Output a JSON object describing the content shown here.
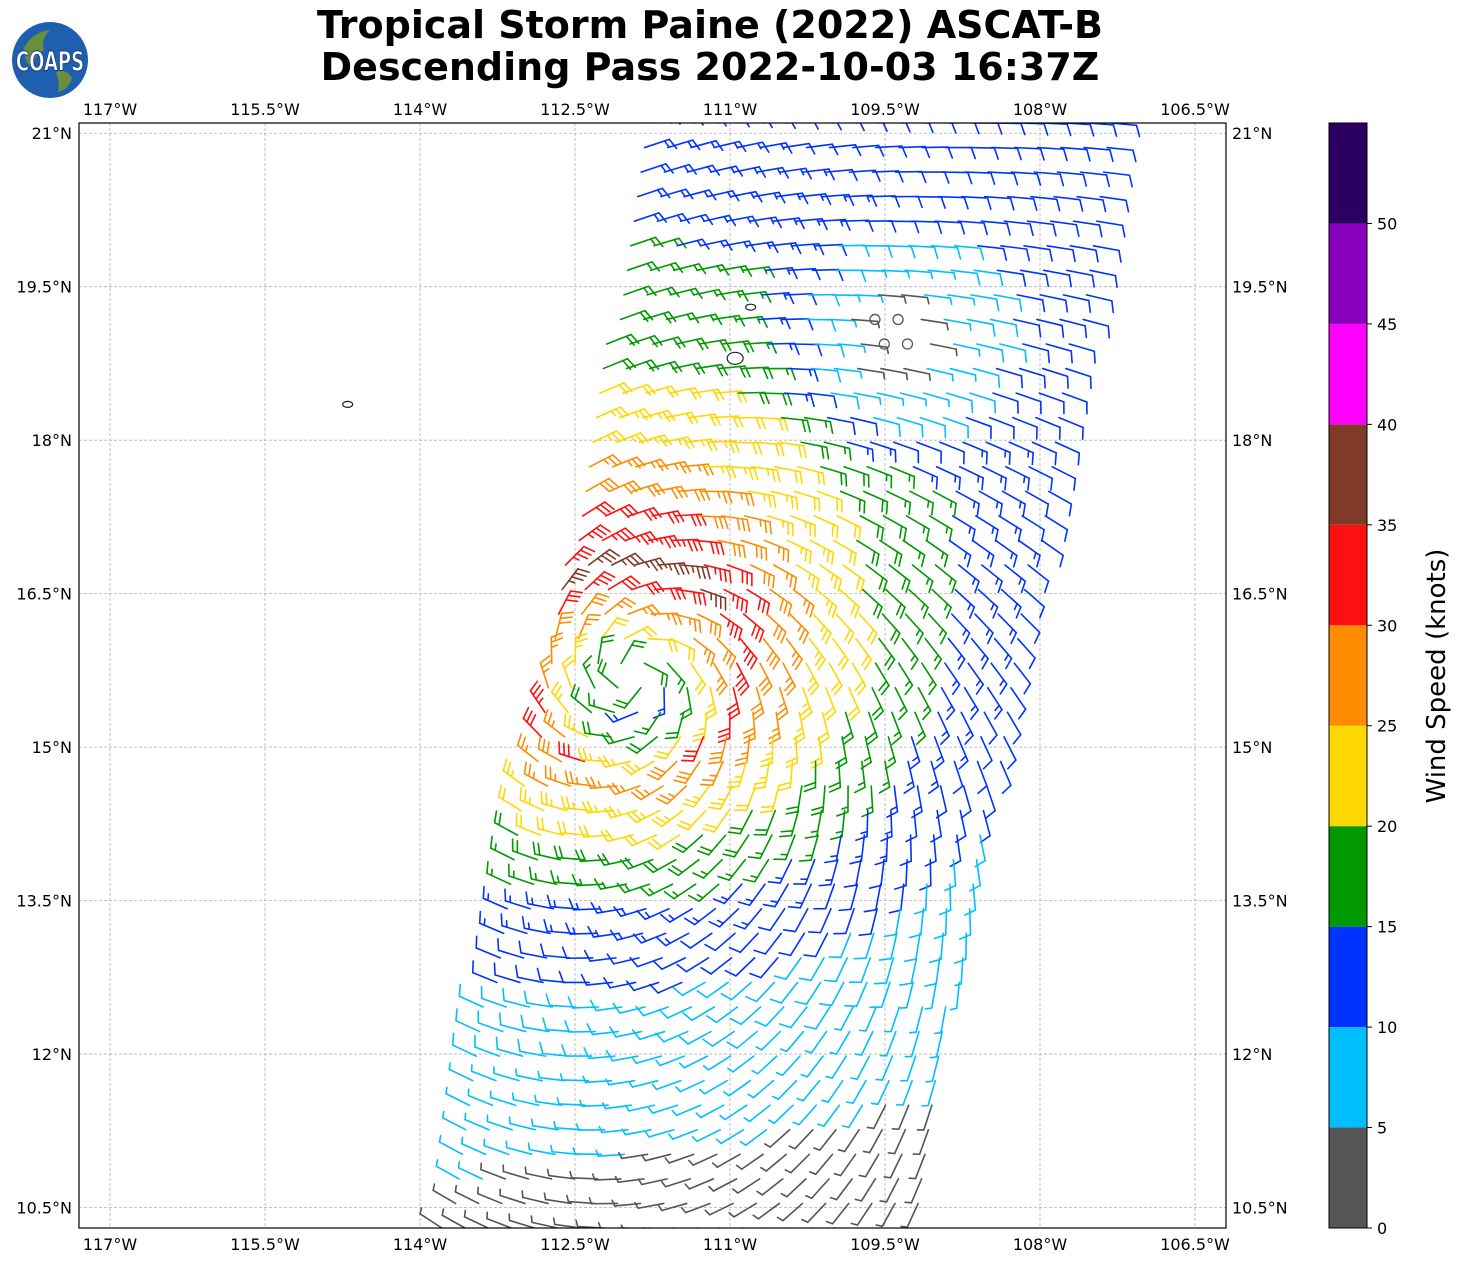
{
  "title": {
    "line1": "Tropical Storm Paine (2022) ASCAT-B",
    "line2": "Descending Pass 2022-10-03 16:37Z"
  },
  "logo": {
    "text": "COAPS",
    "icon": "globe-icon"
  },
  "map": {
    "lon_range": [
      -117.3,
      -106.2
    ],
    "lat_range": [
      10.3,
      21.1
    ],
    "lon_ticks": [
      {
        "value": -117.0,
        "label": "117°W"
      },
      {
        "value": -115.5,
        "label": "115.5°W"
      },
      {
        "value": -114.0,
        "label": "114°W"
      },
      {
        "value": -112.5,
        "label": "112.5°W"
      },
      {
        "value": -111.0,
        "label": "111°W"
      },
      {
        "value": -109.5,
        "label": "109.5°W"
      },
      {
        "value": -108.0,
        "label": "108°W"
      },
      {
        "value": -106.5,
        "label": "106.5°W"
      }
    ],
    "lat_ticks": [
      {
        "value": 21.0,
        "label": "21°N"
      },
      {
        "value": 19.5,
        "label": "19.5°N"
      },
      {
        "value": 18.0,
        "label": "18°N"
      },
      {
        "value": 16.5,
        "label": "16.5°N"
      },
      {
        "value": 15.0,
        "label": "15°N"
      },
      {
        "value": 13.5,
        "label": "13.5°N"
      },
      {
        "value": 12.0,
        "label": "12°N"
      },
      {
        "value": 10.5,
        "label": "10.5°N"
      }
    ],
    "grid": true,
    "storm_center": {
      "lon": -111.95,
      "lat": 15.75
    },
    "swath": {
      "west_edge_north": -111.8,
      "west_edge_south": -113.8,
      "width_deg": 4.7
    },
    "islands": [
      {
        "name": "Socorro",
        "lon": -110.95,
        "lat": 18.8
      },
      {
        "name": "San Benedicto",
        "lon": -110.8,
        "lat": 19.3
      },
      {
        "name": "Clarion",
        "lon": -114.7,
        "lat": 18.35
      }
    ]
  },
  "colorbar": {
    "label": "Wind Speed (knots)",
    "bins": [
      {
        "min": 0,
        "max": 5,
        "color": "#555555"
      },
      {
        "min": 5,
        "max": 10,
        "color": "#00bfff"
      },
      {
        "min": 10,
        "max": 15,
        "color": "#0033ff"
      },
      {
        "min": 15,
        "max": 20,
        "color": "#009900"
      },
      {
        "min": 20,
        "max": 25,
        "color": "#ffd700"
      },
      {
        "min": 25,
        "max": 30,
        "color": "#ff8c00"
      },
      {
        "min": 30,
        "max": 35,
        "color": "#ff1010"
      },
      {
        "min": 35,
        "max": 40,
        "color": "#803a2a"
      },
      {
        "min": 40,
        "max": 45,
        "color": "#ff00ff"
      },
      {
        "min": 45,
        "max": 50,
        "color": "#8800bb"
      },
      {
        "min": 50,
        "max": 55,
        "color": "#2b0060"
      }
    ],
    "tick_labels": [
      "0",
      "5",
      "10",
      "15",
      "20",
      "25",
      "30",
      "35",
      "40",
      "45",
      "50"
    ]
  }
}
